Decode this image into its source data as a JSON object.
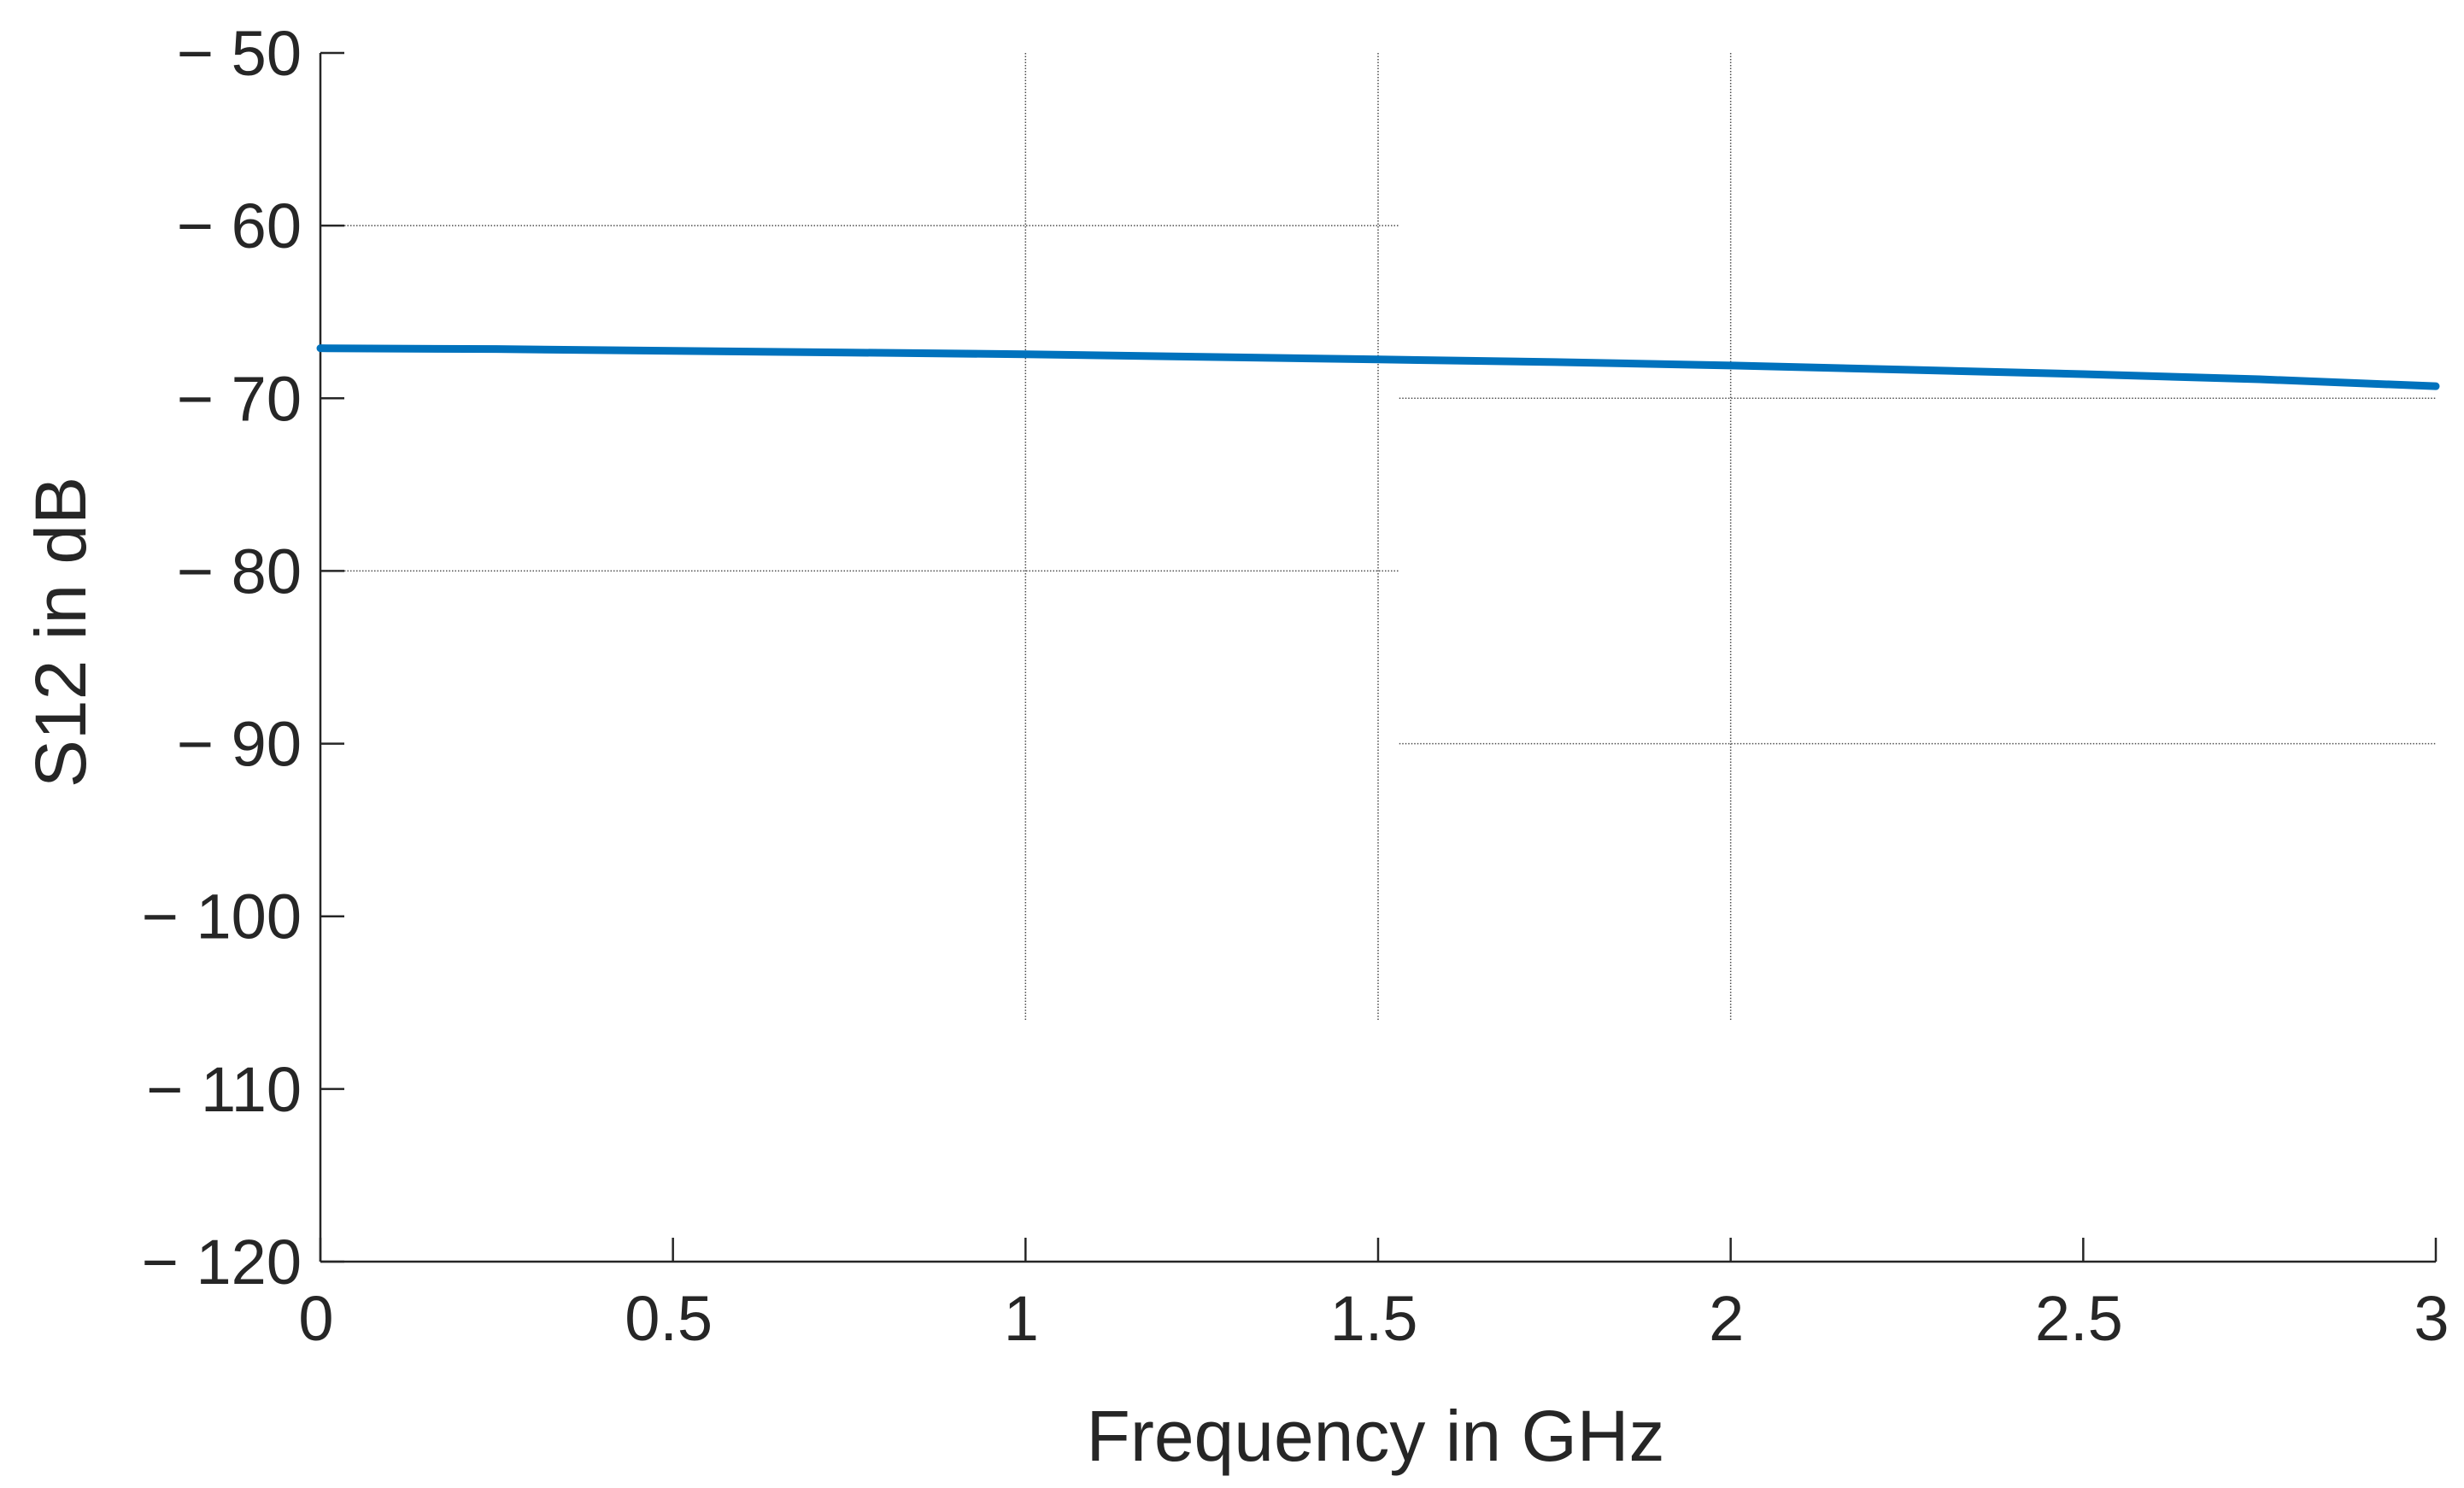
{
  "chart_data": {
    "type": "line",
    "title": "",
    "xlabel": "Frequency in GHz",
    "ylabel": "S12 in dB",
    "xlim": [
      0,
      3
    ],
    "ylim": [
      -120,
      -50
    ],
    "xticks": [
      0,
      0.5,
      1,
      1.5,
      2,
      2.5,
      3
    ],
    "xtick_labels": [
      "0",
      "0.5",
      "1",
      "1.5",
      "2",
      "2.5",
      "3"
    ],
    "yticks": [
      -120,
      -110,
      -100,
      -90,
      -80,
      -70,
      -60,
      -50
    ],
    "ytick_labels": [
      "− 120",
      "− 110",
      "− 100",
      "− 90",
      "− 80",
      "− 70",
      "− 60",
      "− 50"
    ],
    "grid": "partial",
    "series": [
      {
        "color": "#0072bd",
        "x": [
          0,
          0.25,
          0.5,
          0.75,
          1.0,
          1.25,
          1.5,
          1.75,
          2.0,
          2.25,
          2.5,
          2.75,
          3.0
        ],
        "y": [
          -67.1,
          -67.15,
          -67.25,
          -67.35,
          -67.45,
          -67.6,
          -67.75,
          -67.9,
          -68.1,
          -68.35,
          -68.6,
          -68.9,
          -69.3
        ]
      }
    ]
  }
}
